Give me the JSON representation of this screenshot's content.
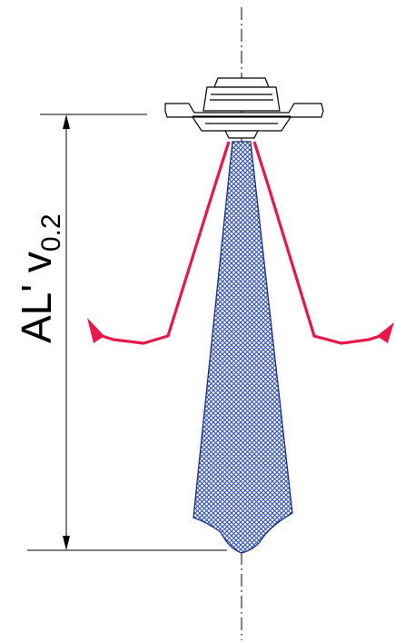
{
  "dimension_label": {
    "main": "AL' v",
    "subscript": "0.2"
  },
  "colors": {
    "line": "#000000",
    "spray_fill": "#2f4fb0",
    "spray_fill_background": "#ffffff",
    "flow_arrow": "#e8174a",
    "nozzle_fill": "#ffffff"
  }
}
